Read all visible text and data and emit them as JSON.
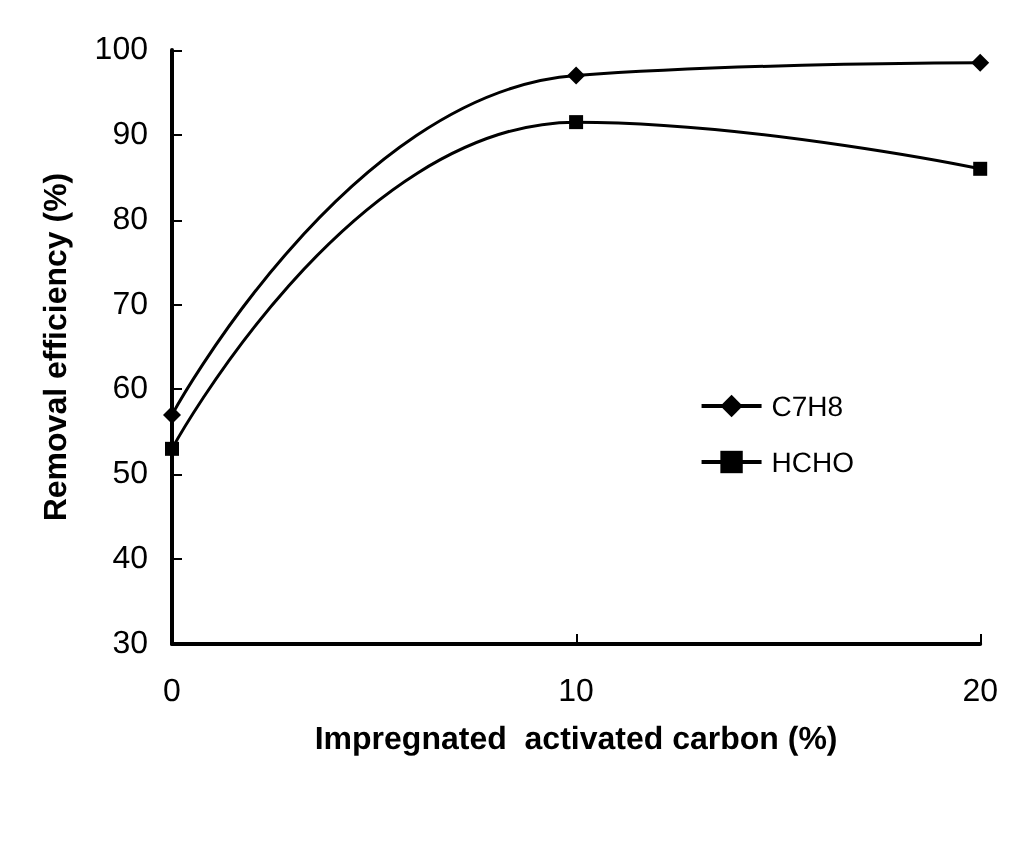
{
  "chart_data": {
    "type": "line",
    "xlabel": "Impregnated  activated carbon (%)",
    "ylabel": "Removal efficiency (%)",
    "x": [
      0,
      10,
      20
    ],
    "series": [
      {
        "name": "C7H8",
        "color": "#000000",
        "marker": "diamond",
        "values": [
          57,
          97,
          98.5
        ]
      },
      {
        "name": "HCHO",
        "color": "#000000",
        "marker": "square",
        "values": [
          53,
          91.5,
          86
        ]
      }
    ],
    "xlim": [
      0,
      20
    ],
    "xticks": [
      0,
      10,
      20
    ],
    "ylim": [
      30,
      100
    ],
    "yticks": [
      30,
      40,
      50,
      60,
      70,
      80,
      90,
      100
    ],
    "grid": false,
    "legend": "right",
    "line_style": "solid"
  }
}
